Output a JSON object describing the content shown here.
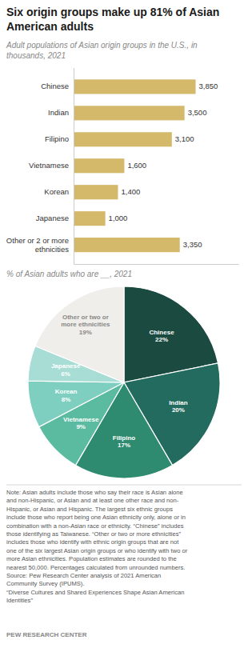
{
  "chart_data": [
    {
      "type": "bar",
      "orientation": "horizontal",
      "title": "Six origin groups make up 81% of Asian\nAmerican adults",
      "subtitle": "Adult populations of Asian origin groups in the U.S., in\nthousands, 2021",
      "categories": [
        "Chinese",
        "Indian",
        "Filipino",
        "Vietnamese",
        "Korean",
        "Japanese",
        "Other or 2 or more\nethnicities"
      ],
      "values": [
        3850,
        3500,
        3100,
        1600,
        1400,
        1000,
        3350
      ],
      "value_labels": [
        "3,850",
        "3,500",
        "3,100",
        "1,600",
        "1,400",
        "1,000",
        "3,350"
      ],
      "data_labels": true,
      "color": "#d4b96a",
      "xlim": [
        0,
        5200
      ],
      "tick_labels": "y"
    },
    {
      "type": "pie",
      "subtitle": "% of Asian adults who are __, 2021",
      "categories": [
        "Chinese",
        "Indian",
        "Filipino",
        "Vietnamese",
        "Korean",
        "Japanese",
        "Other or two or\nmore ethnicities"
      ],
      "values": [
        22,
        20,
        17,
        9,
        8,
        6,
        19
      ],
      "value_labels": [
        "22%",
        "20%",
        "17%",
        "9%",
        "8%",
        "6%",
        "19%"
      ],
      "data_labels": true,
      "colors": [
        "#1a4a40",
        "#236b5e",
        "#2e8b70",
        "#5bbba0",
        "#7ecfc0",
        "#a8ddd5",
        "#f0eeea"
      ],
      "annotations": [
        "Note: Asian adults include those who say their race is Asian alone\nand non-Hispanic, or Asian and at least one other race and non-\nHispanic, or Asian and Hispanic. The largest six ethnic groups\ninclude those who report being one Asian ethnicity only, alone or in\ncombination with a non-Asian race or ethnicity. “Chinese” includes\nthose identifying as Taiwanese. “Other or two or more ethnicities”\nincludes those who identify with ethnic origin groups that are not\none of the six largest Asian origin groups or who identify with two or\nmore Asian ethnicities. Population estimates are rounded to the\nnearest 50,000. Percentages calculated from unrounded numbers.\nSource: Pew Research Center analysis of 2021 American\nCommunity Survey (IPUMS).\n“Diverse Cultures and Shared Experiences Shape Asian American\nIdentities”",
        "PEW RESEARCH CENTER"
      ]
    }
  ]
}
